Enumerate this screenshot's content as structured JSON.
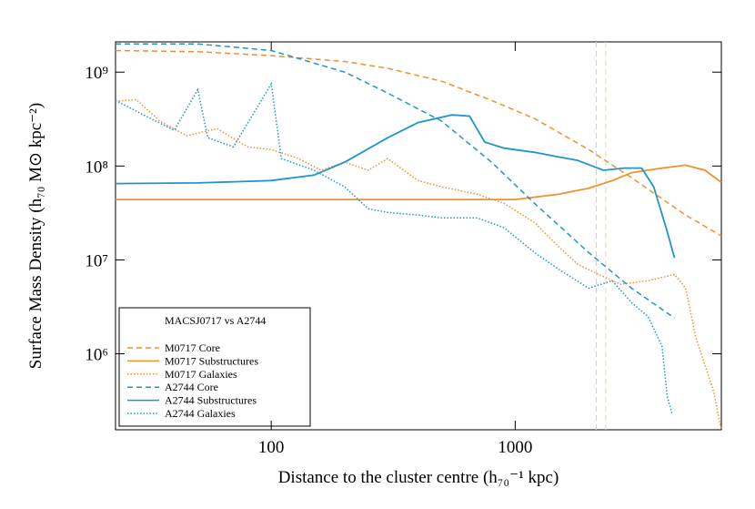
{
  "chart_data": {
    "type": "line",
    "xlabel": "Distance to the cluster centre (h₇₀⁻¹ kpc)",
    "ylabel": "Surface Mass Density (h₇₀ M⊙ kpc⁻²)",
    "log_x": true,
    "log_y": true,
    "xlim": [
      23,
      7000
    ],
    "ylim": [
      155000,
      2100000000
    ],
    "xticks": [
      100,
      1000
    ],
    "yticks": [
      {
        "value": 1000000,
        "label": "10⁶"
      },
      {
        "value": 10000000,
        "label": "10⁷"
      },
      {
        "value": 100000000,
        "label": "10⁸"
      },
      {
        "value": 1000000000,
        "label": "10⁹"
      }
    ],
    "legend_title": "MACSJ0717 vs A2744",
    "legend_position": "lower left",
    "vlines": [
      {
        "value": 2150,
        "color": "#a8dcee"
      },
      {
        "value": 2350,
        "color": "#f7cfa3"
      }
    ],
    "series": [
      {
        "name": "M0717 Core",
        "color": "#f0902e",
        "style": "dashed",
        "x": [
          23,
          50,
          100,
          200,
          300,
          500,
          800,
          1200,
          2000,
          3000,
          5000,
          7000
        ],
        "values": [
          1700000000,
          1650000000,
          1500000000,
          1300000000,
          1100000000,
          800000000,
          500000000,
          320000000,
          150000000,
          75000000,
          30000000,
          18000000
        ]
      },
      {
        "name": "M0717 Substructures",
        "color": "#f0902e",
        "style": "solid",
        "x": [
          23,
          100,
          500,
          1000,
          1500,
          2000,
          2500,
          3000,
          4000,
          5000,
          6000,
          7000
        ],
        "values": [
          44000000,
          44000000,
          44000000,
          44000000,
          50000000,
          58000000,
          70000000,
          85000000,
          95000000,
          102000000,
          90000000,
          67000000
        ]
      },
      {
        "name": "M0717 Galaxies",
        "color": "#f0902e",
        "style": "dotted",
        "x": [
          23,
          28,
          35,
          45,
          60,
          80,
          100,
          130,
          160,
          200,
          250,
          300,
          400,
          500,
          700,
          900,
          1200,
          1500,
          1800,
          2200,
          2700,
          3500,
          4500,
          5000,
          5500,
          6500,
          7000
        ],
        "values": [
          490000000,
          510000000,
          300000000,
          210000000,
          250000000,
          160000000,
          150000000,
          120000000,
          90000000,
          110000000,
          90000000,
          120000000,
          70000000,
          60000000,
          50000000,
          40000000,
          25000000,
          14000000,
          9000000,
          7000000,
          5500000,
          6000000,
          7000000,
          5000000,
          1500000,
          400000,
          155000
        ]
      },
      {
        "name": "A2744 Core",
        "color": "#1f96c7",
        "style": "dashed",
        "x": [
          23,
          50,
          100,
          200,
          300,
          500,
          800,
          1200,
          2000,
          3000,
          4500
        ],
        "values": [
          2000000000,
          2000000000,
          1700000000,
          1000000000,
          600000000,
          300000000,
          110000000,
          40000000,
          12000000,
          5000000,
          2400000
        ]
      },
      {
        "name": "A2744 Substructures",
        "color": "#1f96c7",
        "style": "solid",
        "x": [
          23,
          50,
          100,
          150,
          200,
          300,
          400,
          550,
          650,
          750,
          900,
          1200,
          1500,
          1800,
          2300,
          2800,
          3300,
          3700,
          4200,
          4500
        ],
        "values": [
          65000000,
          66000000,
          70000000,
          80000000,
          110000000,
          200000000,
          290000000,
          350000000,
          340000000,
          180000000,
          155000000,
          140000000,
          125000000,
          115000000,
          90000000,
          95000000,
          95000000,
          60000000,
          20000000,
          10500000
        ]
      },
      {
        "name": "A2744 Galaxies",
        "color": "#1f96c7",
        "style": "dotted",
        "x": [
          23,
          30,
          40,
          50,
          55,
          70,
          100,
          110,
          150,
          200,
          250,
          300,
          400,
          500,
          700,
          900,
          1200,
          1500,
          2000,
          2500,
          3000,
          3500,
          4000,
          4200,
          4400
        ],
        "values": [
          500000000,
          350000000,
          240000000,
          650000000,
          200000000,
          160000000,
          750000000,
          120000000,
          90000000,
          60000000,
          35000000,
          32000000,
          30000000,
          28000000,
          28000000,
          22000000,
          12000000,
          8000000,
          5000000,
          6000000,
          3500000,
          2500000,
          1200000,
          350000,
          230000
        ]
      }
    ]
  }
}
